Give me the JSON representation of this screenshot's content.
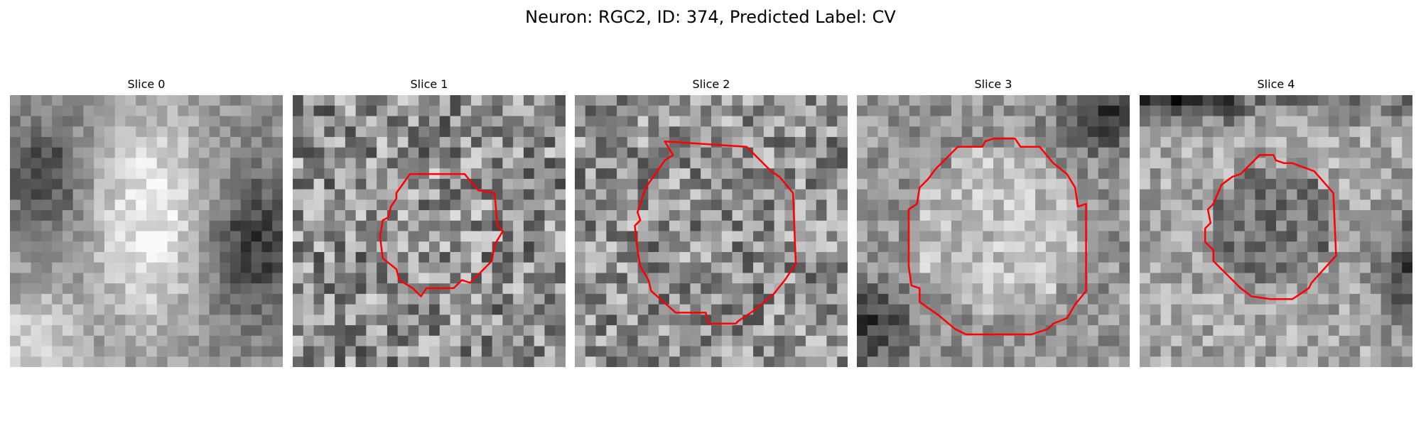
{
  "figure": {
    "title": "Neuron: RGC2, ID: 374, Predicted Label: CV"
  },
  "panels": [
    {
      "title": "Slice 0",
      "has_contour": false
    },
    {
      "title": "Slice 1",
      "has_contour": true
    },
    {
      "title": "Slice 2",
      "has_contour": true
    },
    {
      "title": "Slice 3",
      "has_contour": true
    },
    {
      "title": "Slice 4",
      "has_contour": true
    }
  ],
  "colors": {
    "contour": "#ff0000",
    "background": "#ffffff"
  }
}
